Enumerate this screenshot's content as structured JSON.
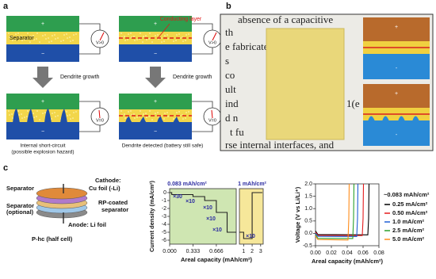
{
  "panel_a": {
    "label": "a",
    "separator": "Separator",
    "conducting_layer": "Conducting layer",
    "cells": [
      {
        "plus": "+",
        "minus": "−",
        "meter": "V>0"
      },
      {
        "plus": "+",
        "minus": "−",
        "meter": "V>0"
      },
      {
        "plus": "+",
        "minus": "−",
        "meter": "V=0"
      },
      {
        "plus": "+",
        "minus": "−",
        "meter": "V=0"
      }
    ],
    "arrows": [
      "Dendrite growth",
      "Dendrite growth"
    ],
    "captions": [
      "Internal short-circuit",
      "(possible explosion hazard)",
      "Dendrite detected (battery still safe)"
    ]
  },
  "panel_b": {
    "label": "b",
    "photo_text": [
      "absence of a capacitive",
      "th",
      "e fabricated",
      "s",
      "co",
      "ult",
      "ind",
      "d n",
      "t fu",
      "1(e",
      "rse internal interfaces, and"
    ],
    "diagrams": [
      {
        "plus": "+",
        "minus": "-"
      },
      {
        "plus": "+",
        "minus": "-"
      }
    ]
  },
  "panel_c": {
    "label": "c",
    "schematic": [
      "Separator",
      "Separator",
      "(optional)",
      "Cathode:",
      "Cu foil (-Li)",
      "RP-coated",
      "separator",
      "Anode: Li foil",
      "P-hc (half cell)"
    ]
  },
  "chart_data": [
    {
      "type": "line",
      "xlabel": "Areal capacity (mAh/cm²)",
      "ylabel": "Current density (mA/cm²)",
      "xlim": [
        0,
        0.95
      ],
      "ylim": [
        -6.5,
        0.5
      ],
      "xticks": [
        {
          "value": 0,
          "label": "0.000"
        },
        {
          "value": 0.333,
          "label": "0.333"
        },
        {
          "value": 0.666,
          "label": "0.666"
        }
      ],
      "yticks": [
        0,
        -1,
        -2,
        -3,
        -4,
        -5,
        -6
      ],
      "background": "#cfe6b2",
      "annotations": [
        "0.083 mAh/cm²",
        "×30",
        "×10",
        "×10",
        "×10",
        "×10"
      ],
      "series": [
        {
          "color": "#222222",
          "x": [
            0,
            0.03,
            0.03,
            0.333,
            0.333,
            0.5,
            0.5,
            0.666,
            0.666,
            0.82,
            0.82,
            0.95
          ],
          "values": [
            0,
            0,
            -0.25,
            -0.25,
            -0.5,
            -0.5,
            -1,
            -1,
            -2.5,
            -2.5,
            -5,
            -5
          ]
        }
      ]
    },
    {
      "type": "line",
      "xlim": [
        0.5,
        3.3
      ],
      "ylim": [
        -6.5,
        0.5
      ],
      "xticks": [
        1,
        2,
        3
      ],
      "background": "#f6e79a",
      "annotations": [
        "1 mAh/cm²",
        "×10"
      ],
      "series": [
        {
          "color": "#222222",
          "x": [
            0.5,
            1,
            1,
            2,
            2,
            3.2
          ],
          "values": [
            -5,
            -5,
            -5.8,
            -5.8,
            0,
            0
          ]
        }
      ]
    },
    {
      "type": "line",
      "xlabel": "Areal capacity (mAh/cm²)",
      "ylabel": "Voltage (V vs Li/Li⁺)",
      "xlim": [
        0,
        0.08
      ],
      "ylim": [
        -0.5,
        2.0
      ],
      "xticks": [
        {
          "value": 0,
          "label": "0.00"
        },
        {
          "value": 0.02,
          "label": "0.02"
        },
        {
          "value": 0.04,
          "label": "0.04"
        },
        {
          "value": 0.06,
          "label": "0.06"
        },
        {
          "value": 0.08,
          "label": "0.08"
        }
      ],
      "yticks": [
        {
          "value": -0.5,
          "label": "-0.5"
        },
        {
          "value": 0,
          "label": "0.0"
        },
        {
          "value": 0.5,
          "label": "0.5"
        },
        {
          "value": 1,
          "label": "1.0"
        },
        {
          "value": 1.5,
          "label": "1.5"
        },
        {
          "value": 2,
          "label": "2.0"
        }
      ],
      "legend_title": "~0.083 mAh/cm²",
      "series": [
        {
          "name": "0.25 mA/cm²",
          "color": "#000000",
          "x": [
            0,
            0.003,
            0.066,
            0.067,
            0.0675
          ],
          "values": [
            0.1,
            -0.05,
            -0.06,
            0.6,
            2.0
          ]
        },
        {
          "name": "0.50 mA/cm²",
          "color": "#e41a1c",
          "x": [
            0,
            0.003,
            0.059,
            0.06,
            0.0605
          ],
          "values": [
            0.05,
            -0.08,
            -0.09,
            0.6,
            2.0
          ]
        },
        {
          "name": "1.0 mA/cm²",
          "color": "#1f5fd6",
          "x": [
            0,
            0.003,
            0.052,
            0.053,
            0.0535
          ],
          "values": [
            0,
            -0.12,
            -0.13,
            0.6,
            2.0
          ]
        },
        {
          "name": "2.5 mA/cm²",
          "color": "#2ca02c",
          "x": [
            0,
            0.003,
            0.047,
            0.048,
            0.0485
          ],
          "values": [
            -0.05,
            -0.2,
            -0.21,
            0.6,
            2.0
          ]
        },
        {
          "name": "5.0 mA/cm²",
          "color": "#ff8c1a",
          "x": [
            0,
            0.003,
            0.041,
            0.042,
            0.0425
          ],
          "values": [
            -0.1,
            -0.25,
            -0.27,
            0.6,
            2.0
          ]
        }
      ]
    }
  ]
}
